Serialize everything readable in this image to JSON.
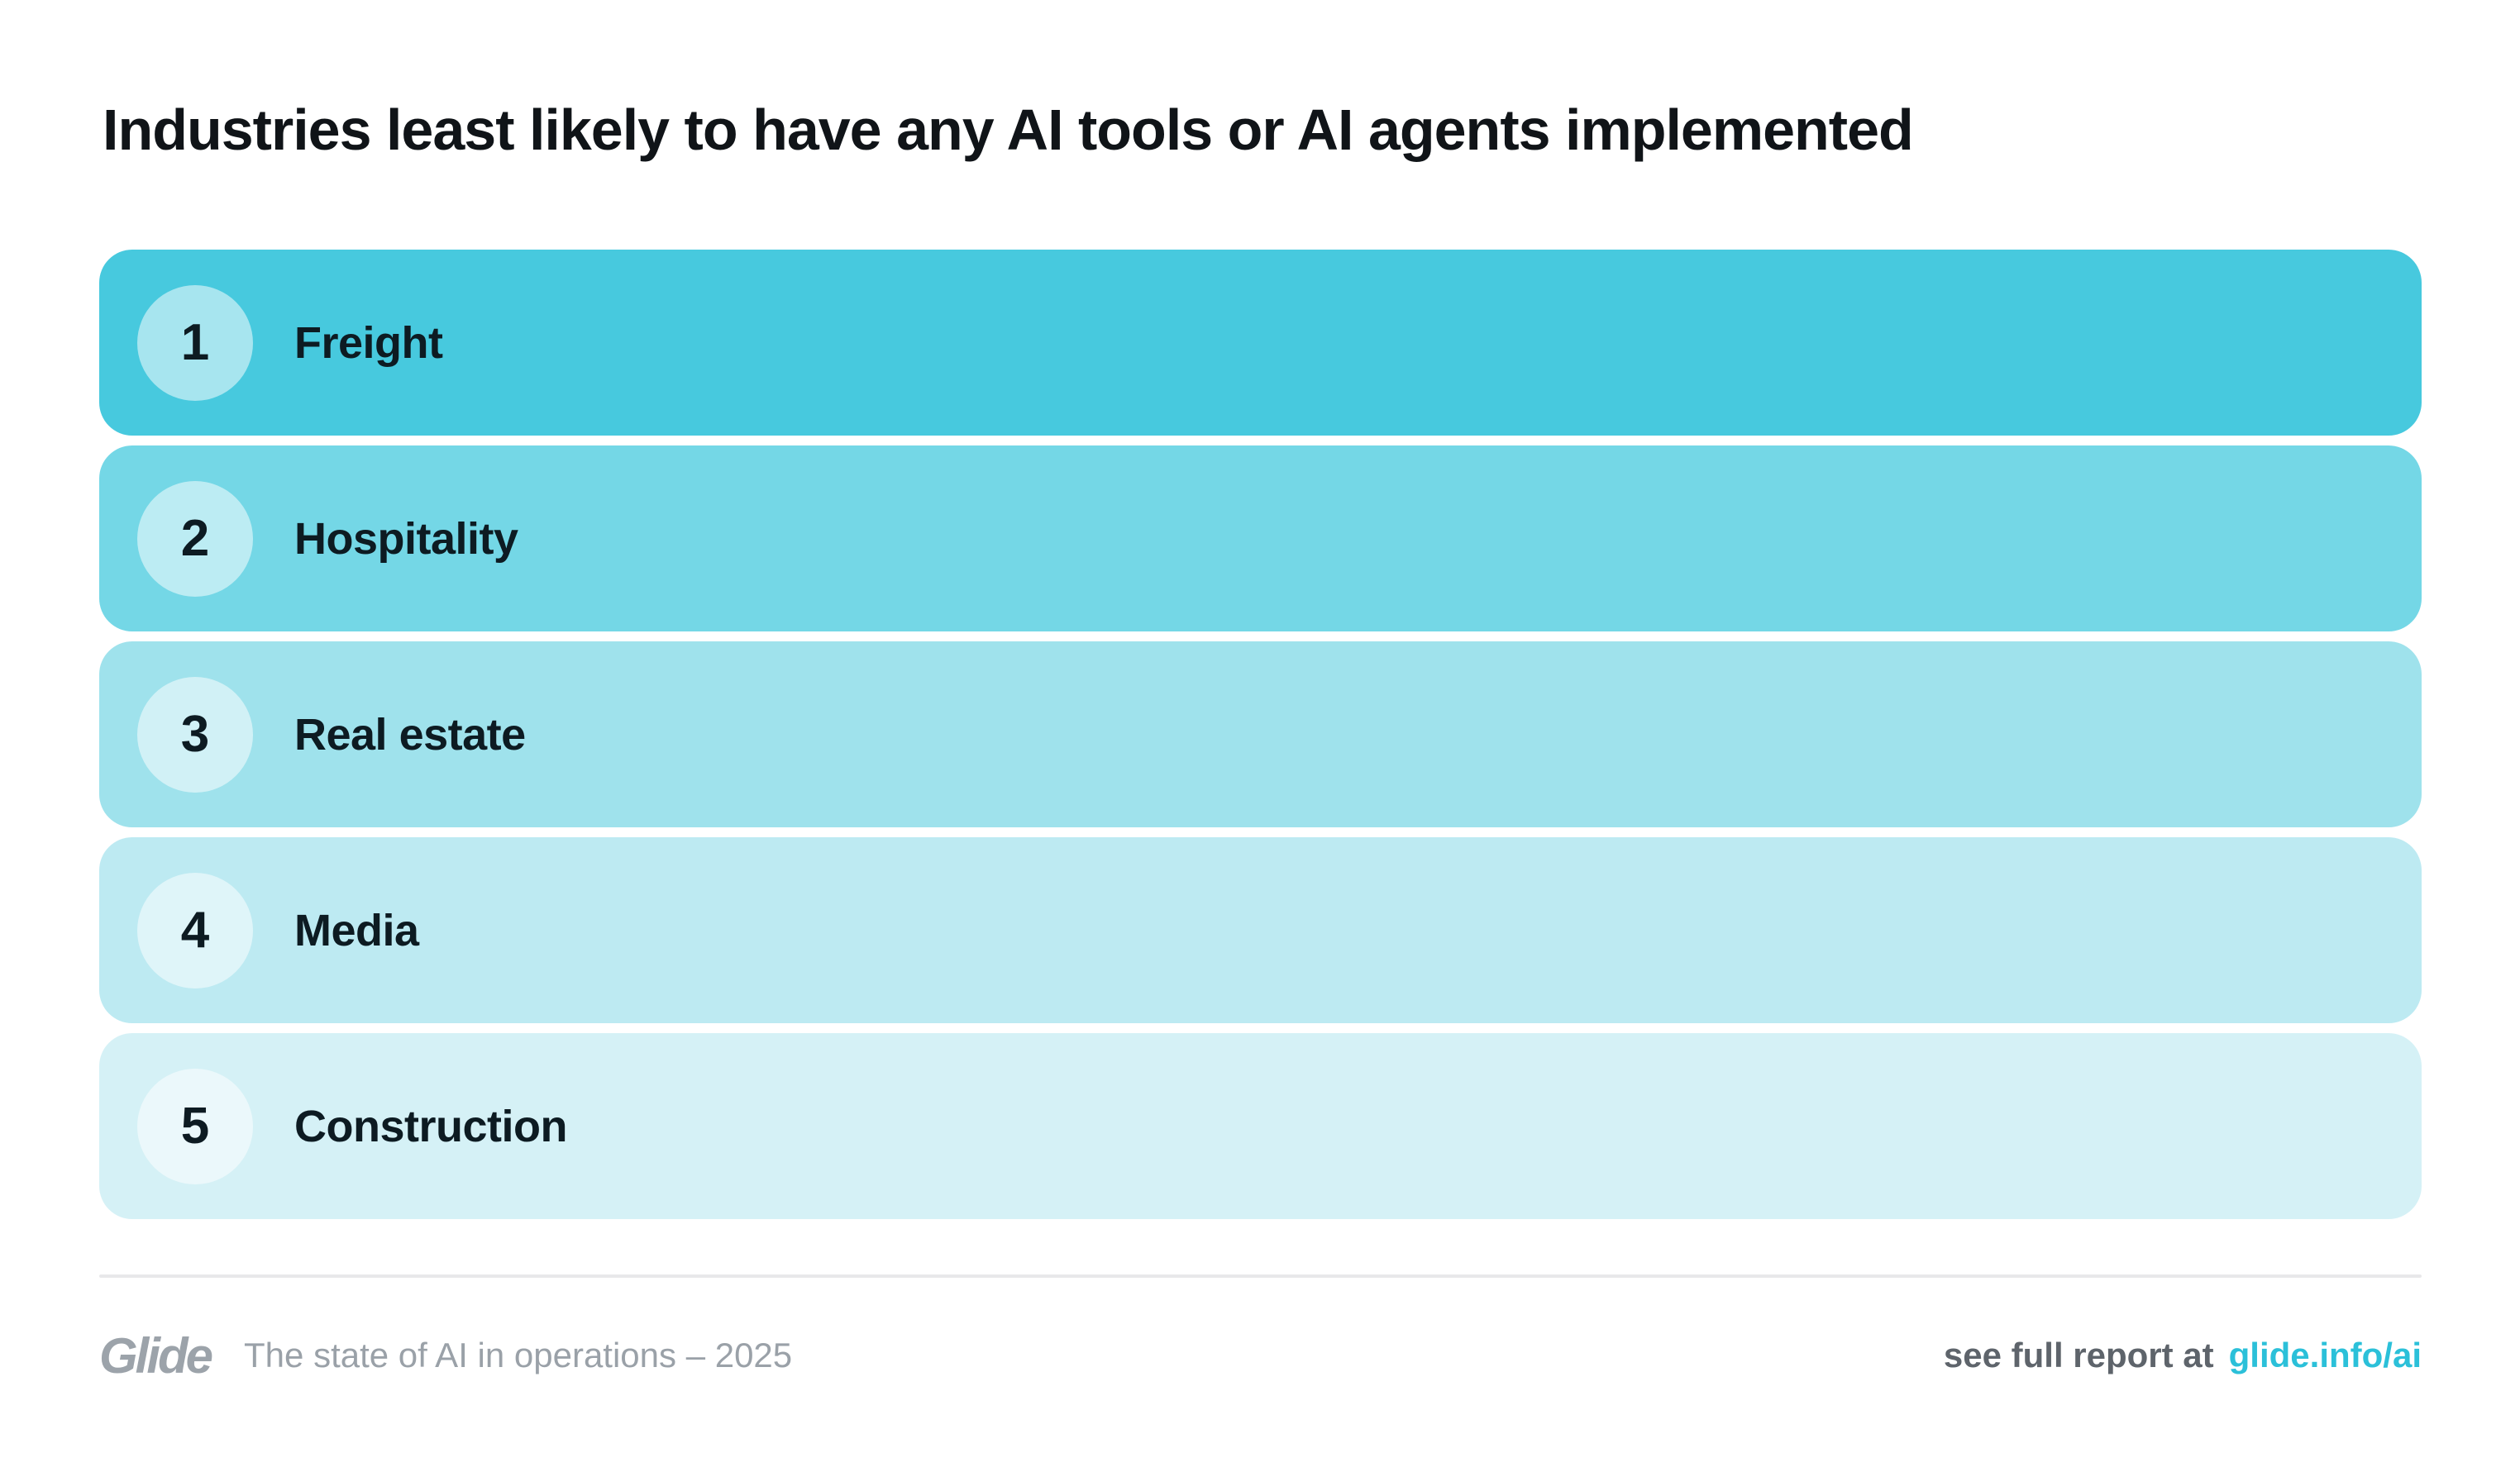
{
  "title": "Industries least likely to have any AI tools or AI agents implemented",
  "ranking": {
    "items": [
      {
        "rank": "1",
        "label": "Freight",
        "color": "#47C9DE"
      },
      {
        "rank": "2",
        "label": "Hospitality",
        "color": "#74D7E6"
      },
      {
        "rank": "3",
        "label": "Real estate",
        "color": "#9FE2EC"
      },
      {
        "rank": "4",
        "label": "Media",
        "color": "#BDEAF2"
      },
      {
        "rank": "5",
        "label": "Construction",
        "color": "#D5F1F6"
      }
    ]
  },
  "footer": {
    "brand": "Glide",
    "subtitle": "The state of AI in operations – 2025",
    "report_prefix": "see full report at",
    "report_link": "glide.info/ai",
    "link_color": "#2BC0D9",
    "muted_text_color": "#9AA1A8"
  },
  "colors": {
    "background": "#FFFFFF",
    "row_text": "#0D1B22",
    "title_text": "#101418",
    "divider": "#E8E8EA",
    "accent_base": "#47C9DE"
  },
  "chart_data": {
    "type": "table",
    "title": "Industries least likely to have any AI tools or AI agents implemented",
    "columns": [
      "rank",
      "industry"
    ],
    "rows": [
      [
        1,
        "Freight"
      ],
      [
        2,
        "Hospitality"
      ],
      [
        3,
        "Real estate"
      ],
      [
        4,
        "Media"
      ],
      [
        5,
        "Construction"
      ]
    ],
    "layout_hint": "ranked horizontal bands, teal color ramp darkest at rank 1 to lightest at rank 5, no numeric axis"
  }
}
